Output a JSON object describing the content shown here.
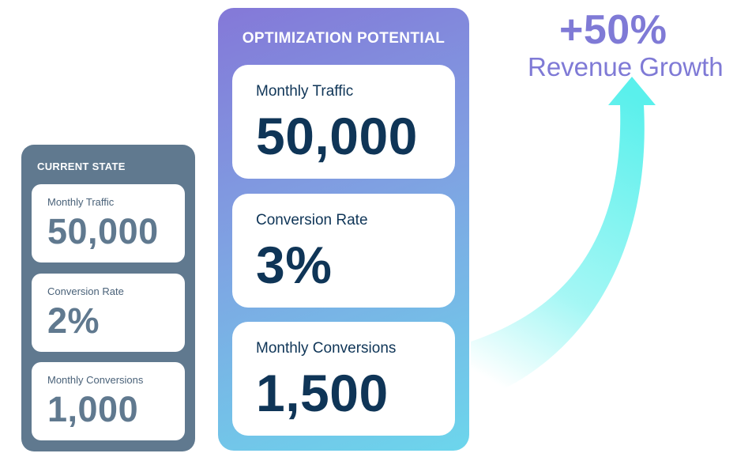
{
  "current_state": {
    "title": "CURRENT STATE",
    "metrics": [
      {
        "label": "Monthly Traffic",
        "value": "50,000"
      },
      {
        "label": "Conversion Rate",
        "value": "2%"
      },
      {
        "label": "Monthly Conversions",
        "value": "1,000"
      }
    ]
  },
  "optimization_potential": {
    "title": "OPTIMIZATION POTENTIAL",
    "metrics": [
      {
        "label": "Monthly Traffic",
        "value": "50,000"
      },
      {
        "label": "Conversion Rate",
        "value": "3%"
      },
      {
        "label": "Monthly Conversions",
        "value": "1,500"
      }
    ]
  },
  "growth": {
    "value": "+50%",
    "label": "Revenue Growth"
  },
  "colors": {
    "current_panel": "#60798f",
    "current_value": "#60798f",
    "optimization_gradient_start": "#8478d8",
    "optimization_gradient_end": "#6cd6ec",
    "optimization_value": "#0f3557",
    "growth_text": "#7f7ad6",
    "arrow": "#5af0ec"
  },
  "icons": {
    "growth_arrow": "curved-up-arrow-icon"
  }
}
